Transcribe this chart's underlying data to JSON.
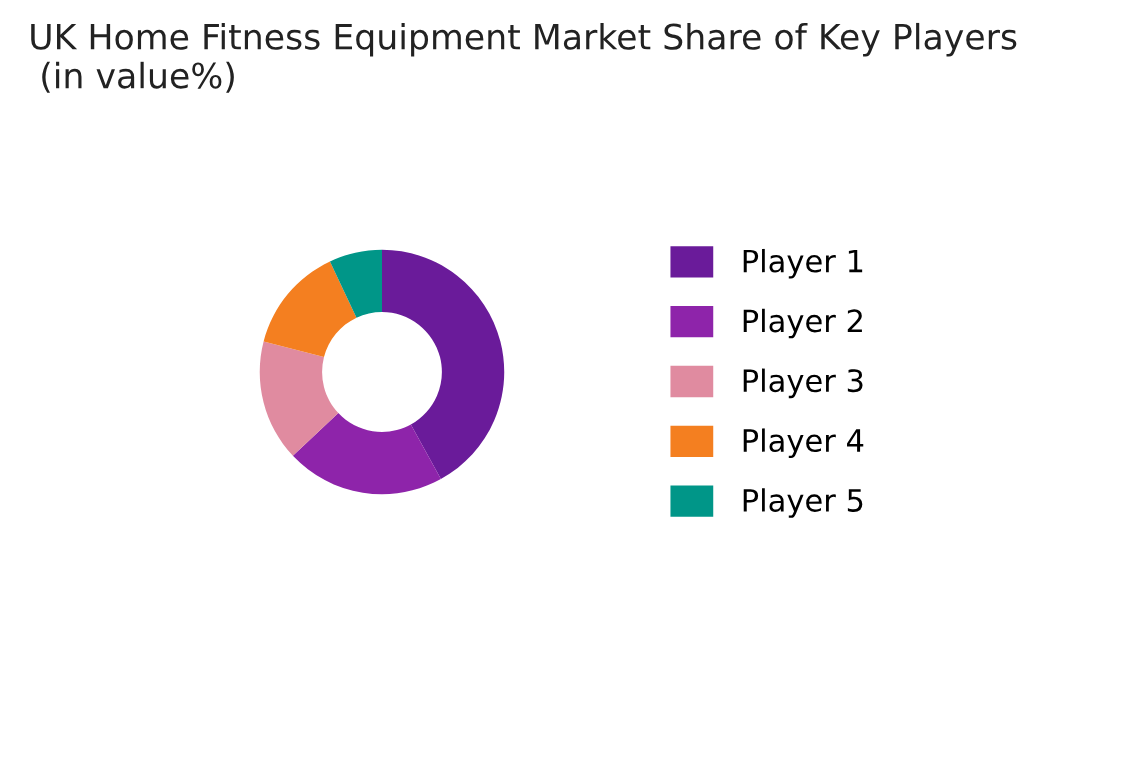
{
  "chart_data": {
    "type": "donut",
    "title": "UK Home Fitness Equipment Market Share of Key Players\n (in value%)",
    "categories": [
      "Player 1",
      "Player 2",
      "Player 3",
      "Player 4",
      "Player 5"
    ],
    "values": [
      42,
      21,
      16,
      14,
      7
    ],
    "colors": [
      "#6a1b9a",
      "#8e24aa",
      "#e08ba0",
      "#f47f20",
      "#009688"
    ],
    "legend": "right"
  }
}
